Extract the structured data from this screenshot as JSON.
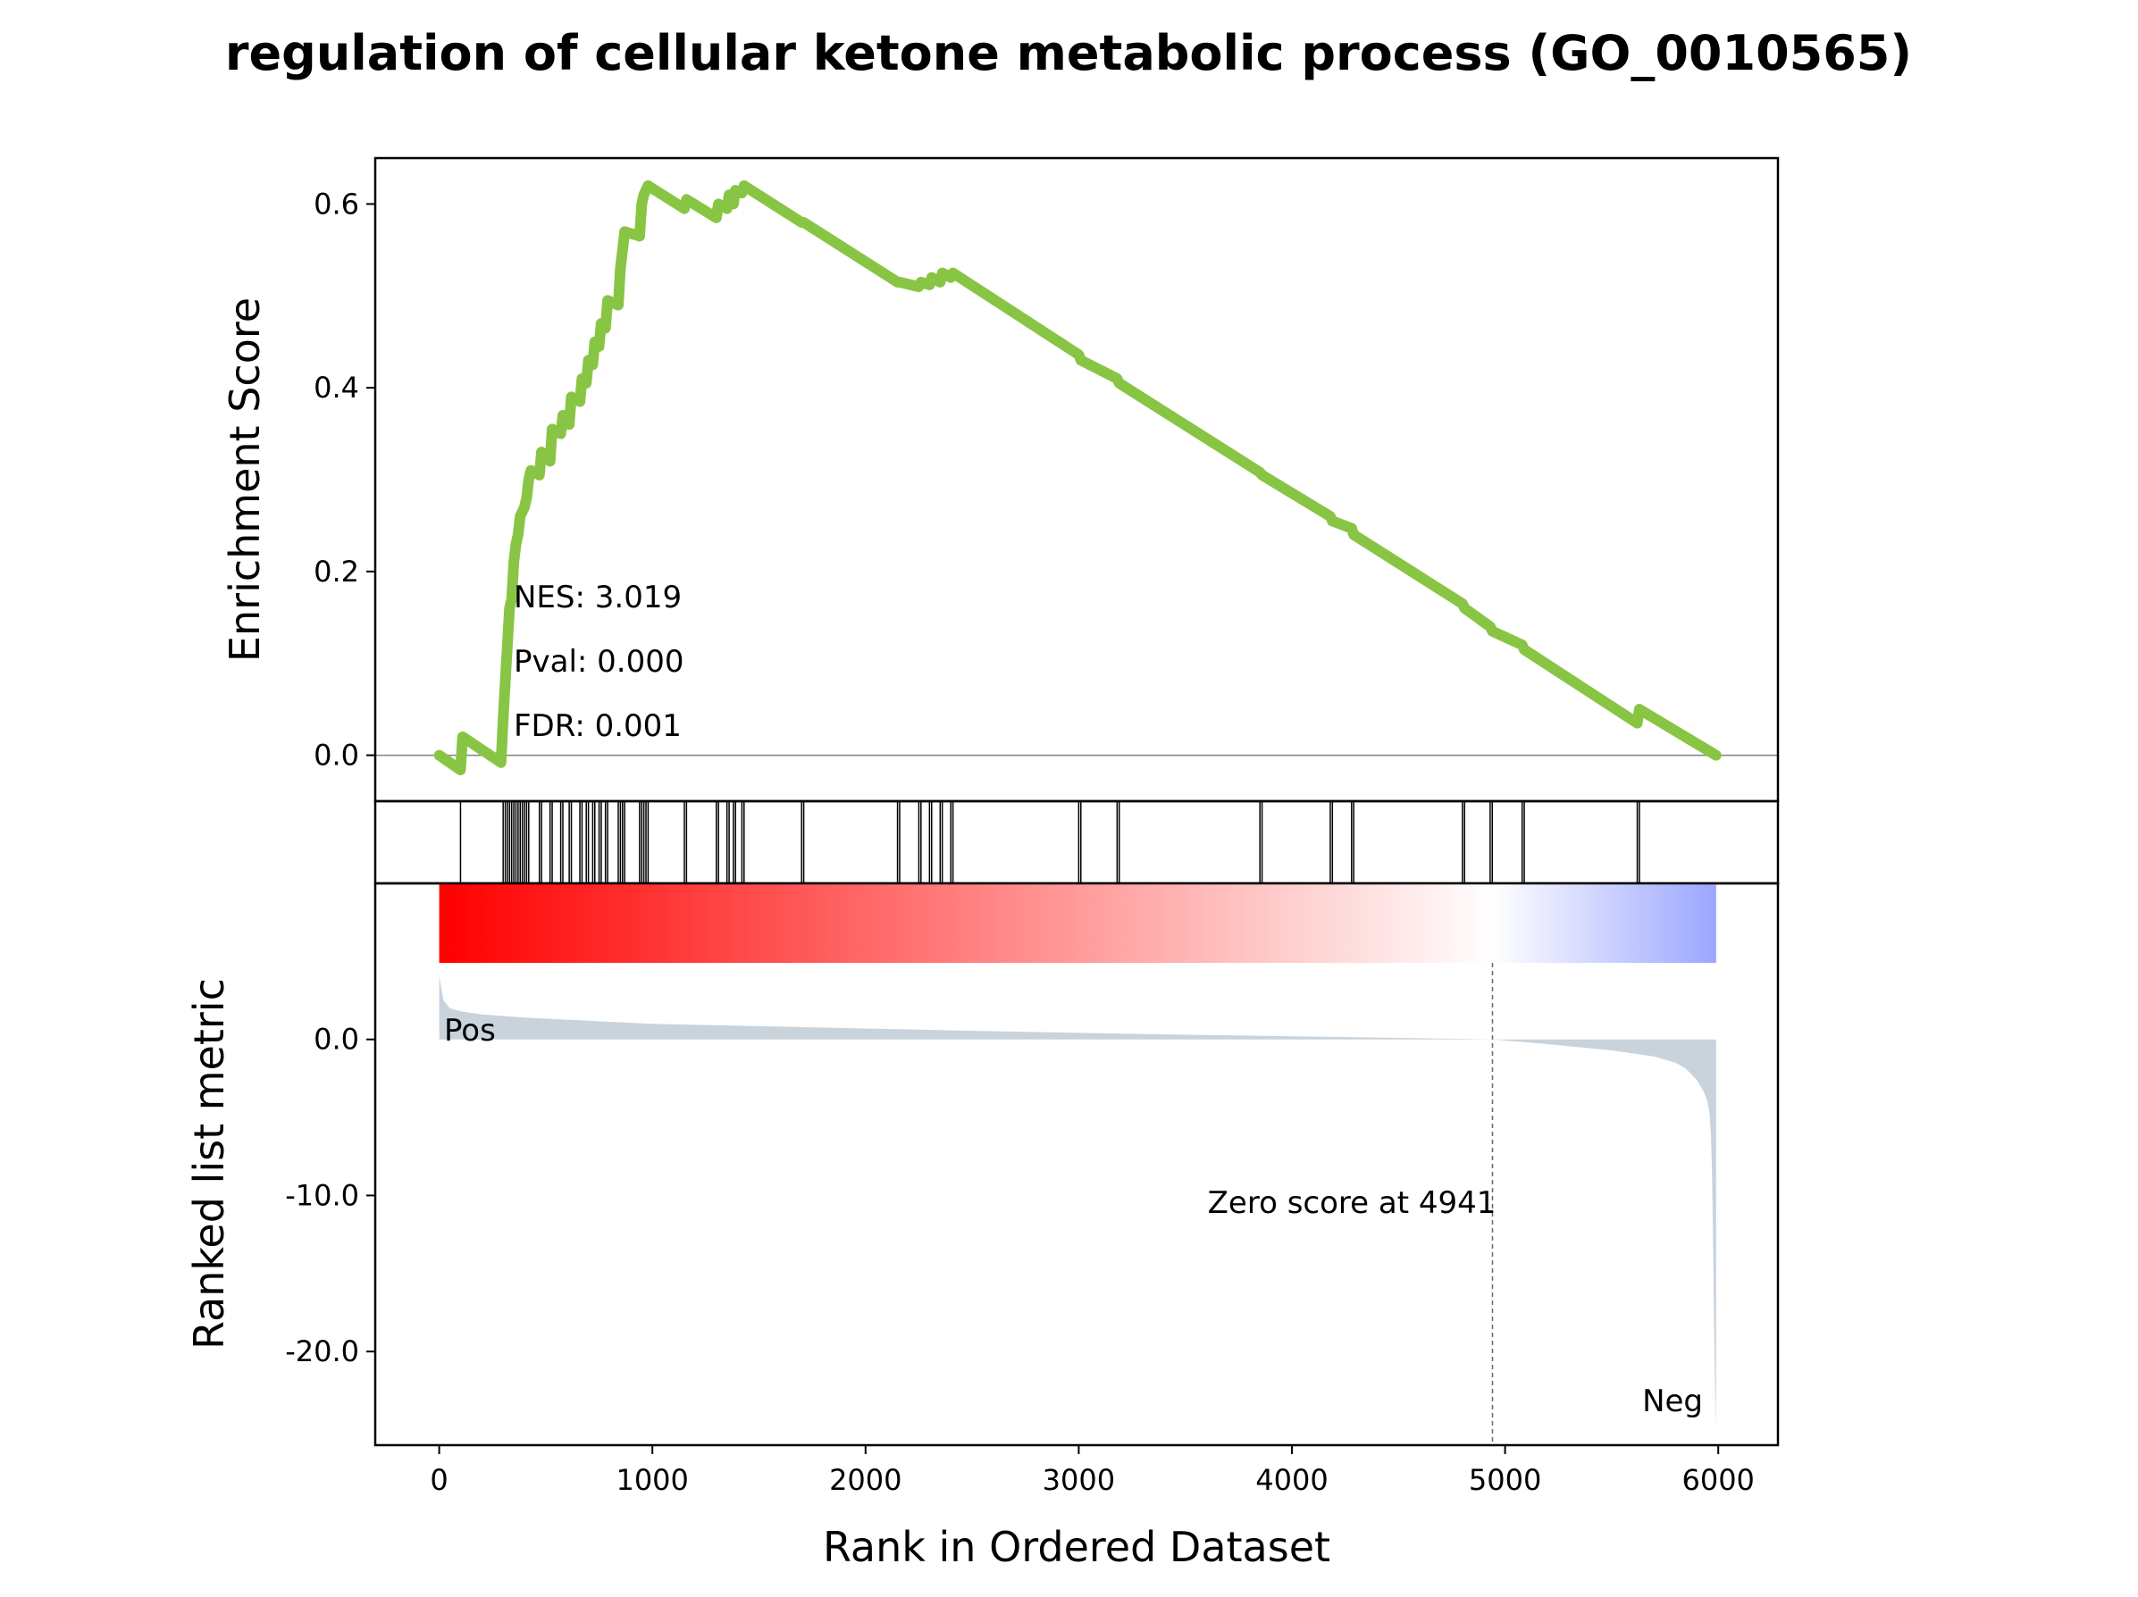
{
  "chart_data": {
    "type": "line",
    "title": "regulation of cellular ketone metabolic process (GO_0010565)",
    "xlabel": "Rank in Ordered Dataset",
    "xlim": [
      -300,
      6280
    ],
    "xticks": [
      0,
      1000,
      2000,
      3000,
      4000,
      5000,
      6000
    ],
    "es_panel": {
      "ylabel": "Enrichment Score",
      "ylim": [
        -0.05,
        0.65
      ],
      "yticks": [
        "0.0",
        "0.2",
        "0.4",
        "0.6"
      ],
      "ytick_values": [
        0.0,
        0.2,
        0.4,
        0.6
      ],
      "line_color": "#88c544",
      "series": {
        "name": "Enrichment Score",
        "x": [
          0,
          100,
          110,
          290,
          300,
          310,
          320,
          330,
          340,
          350,
          360,
          370,
          380,
          390,
          400,
          410,
          420,
          430,
          470,
          480,
          520,
          530,
          570,
          580,
          610,
          620,
          660,
          670,
          690,
          700,
          720,
          730,
          750,
          760,
          780,
          790,
          840,
          850,
          860,
          870,
          940,
          950,
          960,
          970,
          980,
          1150,
          1160,
          1300,
          1310,
          1350,
          1360,
          1380,
          1390,
          1420,
          1430,
          1700,
          1710,
          2150,
          2160,
          2250,
          2260,
          2300,
          2310,
          2350,
          2360,
          2400,
          2410,
          3000,
          3010,
          3180,
          3190,
          3850,
          3860,
          4180,
          4190,
          4280,
          4290,
          4800,
          4810,
          4930,
          4940,
          5080,
          5090,
          5620,
          5630,
          5990
        ],
        "y": [
          0.0,
          -0.016,
          0.02,
          -0.008,
          0.04,
          0.08,
          0.12,
          0.16,
          0.17,
          0.21,
          0.23,
          0.24,
          0.26,
          0.265,
          0.27,
          0.28,
          0.3,
          0.31,
          0.305,
          0.33,
          0.32,
          0.355,
          0.35,
          0.37,
          0.36,
          0.39,
          0.385,
          0.41,
          0.405,
          0.43,
          0.425,
          0.45,
          0.445,
          0.47,
          0.465,
          0.495,
          0.49,
          0.53,
          0.55,
          0.57,
          0.565,
          0.6,
          0.61,
          0.615,
          0.62,
          0.595,
          0.605,
          0.585,
          0.6,
          0.595,
          0.61,
          0.6,
          0.615,
          0.612,
          0.62,
          0.58,
          0.58,
          0.515,
          0.515,
          0.51,
          0.515,
          0.512,
          0.52,
          0.515,
          0.525,
          0.52,
          0.525,
          0.436,
          0.43,
          0.41,
          0.405,
          0.308,
          0.305,
          0.26,
          0.255,
          0.247,
          0.24,
          0.165,
          0.16,
          0.14,
          0.135,
          0.12,
          0.115,
          0.035,
          0.05,
          0.0
        ]
      }
    },
    "hits": [
      100,
      300,
      310,
      320,
      330,
      340,
      350,
      360,
      370,
      380,
      390,
      400,
      410,
      420,
      470,
      480,
      520,
      530,
      570,
      580,
      610,
      620,
      660,
      670,
      690,
      700,
      720,
      730,
      750,
      760,
      780,
      790,
      840,
      850,
      860,
      870,
      940,
      950,
      960,
      970,
      980,
      1150,
      1160,
      1300,
      1310,
      1350,
      1360,
      1380,
      1390,
      1420,
      1430,
      1700,
      1710,
      2150,
      2160,
      2250,
      2260,
      2300,
      2310,
      2350,
      2360,
      2400,
      2410,
      3000,
      3010,
      3180,
      3190,
      3850,
      3860,
      4180,
      4190,
      4280,
      4290,
      4800,
      4810,
      4930,
      4940,
      5080,
      5090,
      5620,
      5630
    ],
    "rank_panel": {
      "ylabel": "Ranked list metric",
      "ylim": [
        -26,
        10
      ],
      "yticks": [
        "0.0",
        "-10.0",
        "-20.0"
      ],
      "ytick_values": [
        0.0,
        -10.0,
        -20.0
      ],
      "fill_color": "#c9d3dc",
      "metric_x": [
        0,
        20,
        50,
        100,
        200,
        400,
        700,
        1000,
        1500,
        2000,
        2500,
        3000,
        3500,
        4000,
        4500,
        4941,
        5200,
        5500,
        5700,
        5800,
        5850,
        5900,
        5930,
        5950,
        5960,
        5965,
        5970,
        5975,
        5980,
        5985,
        5990
      ],
      "metric_y": [
        4.0,
        2.5,
        2.0,
        1.8,
        1.6,
        1.4,
        1.2,
        1.0,
        0.85,
        0.7,
        0.55,
        0.42,
        0.3,
        0.2,
        0.1,
        0.0,
        -0.3,
        -0.7,
        -1.1,
        -1.5,
        -1.9,
        -2.6,
        -3.3,
        -4.0,
        -4.8,
        -6.0,
        -8.0,
        -12.0,
        -18.0,
        -22.0,
        -25.0
      ],
      "zero_score_rank": 4941,
      "zero_label": "Zero score at 4941",
      "pos_label": "Pos",
      "neg_label": "Neg",
      "pos_color": "#ff0000",
      "neg_color": "#0000ff"
    },
    "colorbar": {
      "high_color": "#ff0000",
      "mid_color": "#ffffff",
      "low_color": "#9ba6ff"
    },
    "stats": {
      "nes": "NES: 3.019",
      "pval": "Pval: 0.000",
      "fdr": "FDR: 0.001"
    }
  }
}
